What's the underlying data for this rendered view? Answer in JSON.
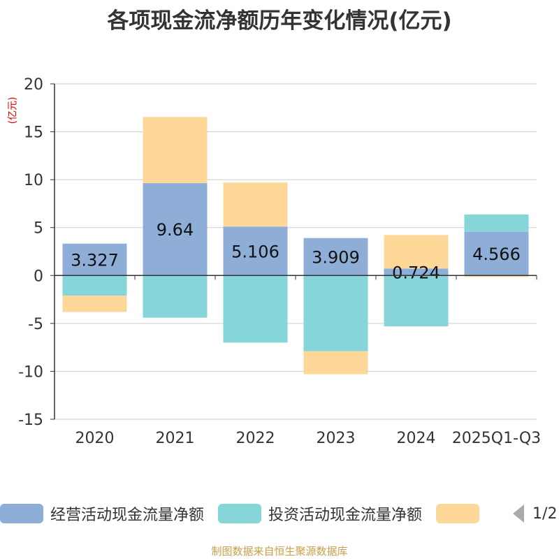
{
  "title": "各项现金流净额历年变化情况(亿元)",
  "unit": "(亿元)",
  "source": "制图数据来自恒生聚源数据库",
  "pager": "1/2",
  "colors": {
    "operating": "#8eaed8",
    "investing": "#86d5d8",
    "financing": "#fdd899",
    "axis": "#333333",
    "grid": "#cccccc",
    "text": "#333333"
  },
  "chart_data": {
    "type": "bar",
    "stacked": true,
    "title": "各项现金流净额历年变化情况(亿元)",
    "ylabel": "(亿元)",
    "ylim": [
      -15,
      20
    ],
    "yticks": [
      20,
      15,
      10,
      5,
      0,
      -5,
      -10,
      -15
    ],
    "categories": [
      "2020",
      "2021",
      "2022",
      "2023",
      "2024",
      "2025Q1-Q3"
    ],
    "series": [
      {
        "name": "经营活动现金流量净额",
        "color": "#8eaed8",
        "values": [
          3.327,
          9.64,
          5.106,
          3.909,
          0.724,
          4.566
        ],
        "labels": [
          "3.327",
          "9.64",
          "5.106",
          "3.909",
          "0.724",
          "4.566"
        ]
      },
      {
        "name": "投资活动现金流量净额",
        "color": "#86d5d8",
        "values": [
          -2.1,
          -4.4,
          -7.0,
          -7.9,
          -5.3,
          1.8
        ],
        "labels": []
      },
      {
        "name": "",
        "color": "#fdd899",
        "values": [
          -1.7,
          6.9,
          4.6,
          -2.4,
          3.5,
          -0.15
        ],
        "labels": []
      }
    ]
  }
}
